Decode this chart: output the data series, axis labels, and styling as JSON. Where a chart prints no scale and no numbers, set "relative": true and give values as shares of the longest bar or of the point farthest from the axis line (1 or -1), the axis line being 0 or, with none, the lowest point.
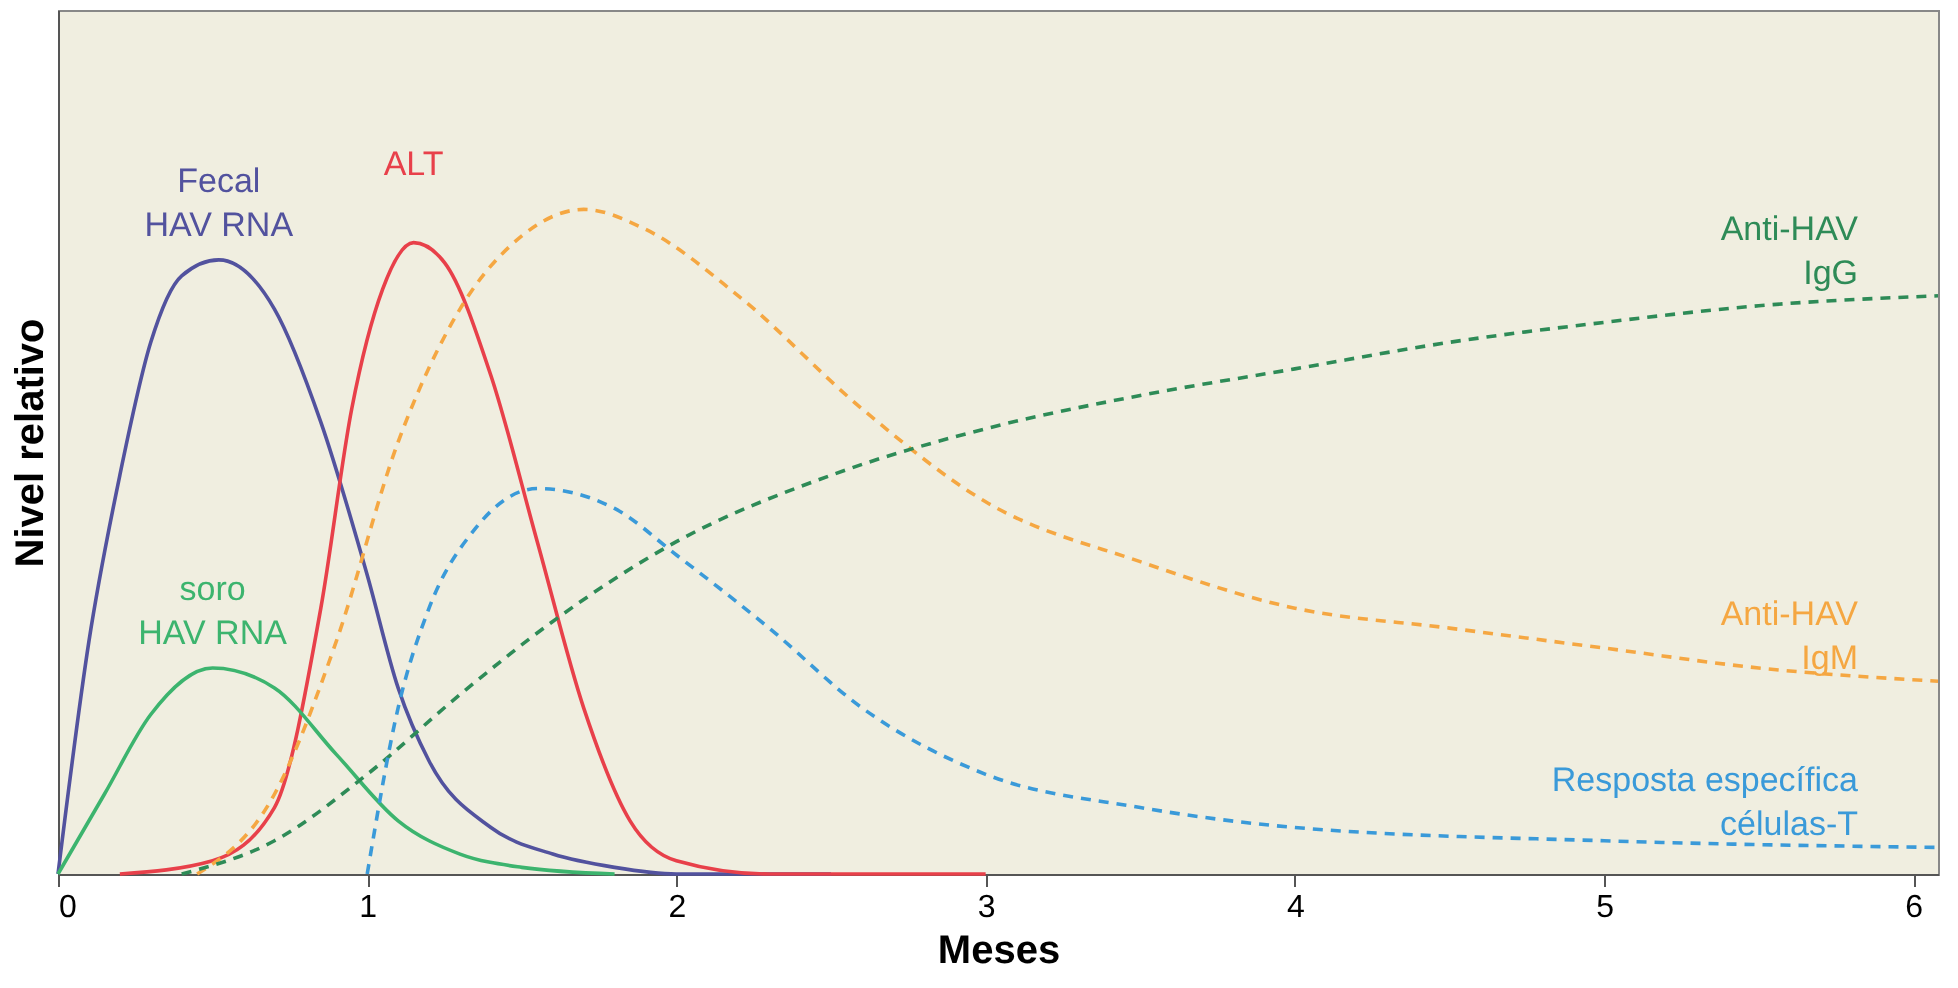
{
  "chart_data": {
    "type": "line",
    "relative": true,
    "xlabel": "Meses",
    "ylabel": "Nivel relativo",
    "xlim": [
      0,
      6.08
    ],
    "xticks": [
      0,
      1,
      2,
      3,
      4,
      5,
      6
    ],
    "tick_labels": "x",
    "grid": false,
    "legend": false,
    "marker": "none",
    "series": [
      {
        "name": "Fecal\nHAV RNA",
        "color": "#52529e",
        "line_style": "solid",
        "x": [
          0,
          0.1,
          0.2,
          0.3,
          0.4,
          0.52,
          0.7,
          0.85,
          1.0,
          1.1,
          1.2,
          1.4,
          1.6,
          1.8,
          2.0,
          2.5
        ],
        "values": [
          0,
          0.35,
          0.6,
          0.8,
          0.9,
          0.924,
          0.85,
          0.68,
          0.45,
          0.28,
          0.17,
          0.07,
          0.03,
          0.01,
          0,
          0
        ]
      },
      {
        "name": "ALT",
        "color": "#e8404a",
        "line_style": "solid",
        "x": [
          0.2,
          0.5,
          0.7,
          0.85,
          0.95,
          1.05,
          1.15,
          1.25,
          1.4,
          1.55,
          1.7,
          1.85,
          2.0,
          2.3,
          3.0
        ],
        "values": [
          0,
          0.02,
          0.1,
          0.4,
          0.7,
          0.88,
          0.95,
          0.92,
          0.75,
          0.5,
          0.25,
          0.08,
          0.02,
          0,
          0
        ]
      },
      {
        "name": "soro\nHAV RNA",
        "color": "#3cb46e",
        "line_style": "solid",
        "x": [
          0,
          0.15,
          0.3,
          0.5,
          0.7,
          0.9,
          1.1,
          1.3,
          1.5,
          1.8
        ],
        "values": [
          0,
          0.12,
          0.24,
          0.31,
          0.28,
          0.18,
          0.08,
          0.03,
          0.01,
          0
        ]
      },
      {
        "name": "Anti-HAV\nIgM",
        "color": "#f5a742",
        "line_style": "dashed",
        "x": [
          0.45,
          0.7,
          0.9,
          1.1,
          1.3,
          1.5,
          1.7,
          1.9,
          2.2,
          2.6,
          3.0,
          3.5,
          4.0,
          4.5,
          5.0,
          5.5,
          6.08
        ],
        "values": [
          0,
          0.12,
          0.35,
          0.65,
          0.85,
          0.96,
          1.0,
          0.97,
          0.87,
          0.7,
          0.56,
          0.47,
          0.4,
          0.37,
          0.34,
          0.31,
          0.29
        ]
      },
      {
        "name": "Anti-HAV\nIgG",
        "color": "#2e8b57",
        "line_style": "dashed",
        "x": [
          0.4,
          0.7,
          1.0,
          1.3,
          1.6,
          2.0,
          2.5,
          3.0,
          3.5,
          4.0,
          4.5,
          5.0,
          5.5,
          6.08
        ],
        "values": [
          0,
          0.05,
          0.15,
          0.27,
          0.38,
          0.5,
          0.6,
          0.67,
          0.72,
          0.76,
          0.8,
          0.83,
          0.855,
          0.87
        ]
      },
      {
        "name": "Resposta específica\ncélulas-T",
        "color": "#3a9ad9",
        "line_style": "dashed",
        "x": [
          1.0,
          1.1,
          1.2,
          1.35,
          1.55,
          1.8,
          2.0,
          2.3,
          2.6,
          3.0,
          3.5,
          4.0,
          5.0,
          6.08
        ],
        "values": [
          0,
          0.25,
          0.4,
          0.52,
          0.58,
          0.55,
          0.48,
          0.37,
          0.25,
          0.15,
          0.1,
          0.07,
          0.05,
          0.04
        ]
      }
    ]
  }
}
